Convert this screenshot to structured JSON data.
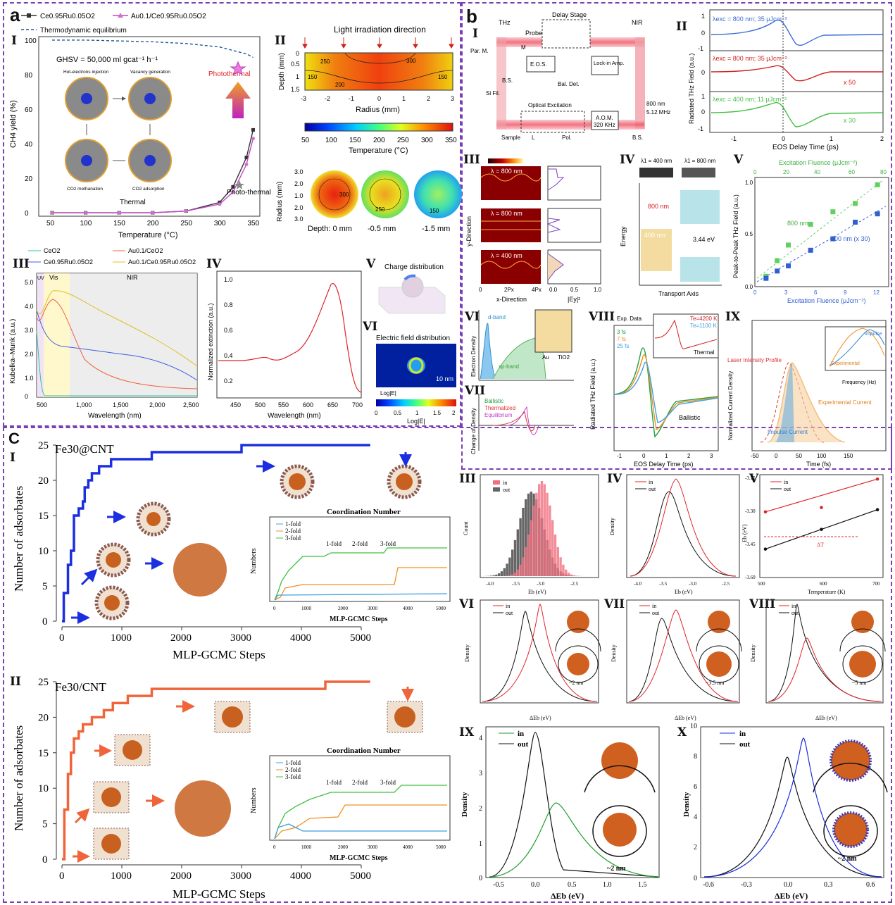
{
  "panels": {
    "a": "a",
    "b": "b",
    "c": "C"
  },
  "roman": {
    "I": "I",
    "II": "II",
    "III": "III",
    "IV": "IV",
    "V": "V",
    "VI": "VI",
    "VII": "VII",
    "VIII": "VIII",
    "IX": "IX",
    "X": "X"
  },
  "a1": {
    "legend": [
      "Ce0.95Ru0.05O2",
      "Au0.1/Ce0.95Ru0.05O2",
      "Thermodynamic equilibrium"
    ],
    "ghsv": "GHSV = 50,000 ml gcat⁻¹ h⁻¹",
    "ylabel": "CH4 yield (%)",
    "xlabel": "Temperature (°C)",
    "labels": [
      "Hot-electrons injection",
      "Vacancy generation",
      "CO2 methanation",
      "CO2 adsorption",
      "Thermal",
      "Photothermal",
      "Photo-thermal"
    ]
  },
  "a2": {
    "title": "Light irradiation direction",
    "ylabel": "Depth (mm)",
    "xlabel": "Radius (mm)",
    "cbar_label": "Temperature (°C)",
    "cbar_ticks": [
      "50",
      "100",
      "150",
      "200",
      "250",
      "300",
      "350"
    ],
    "depth_labels": [
      "Depth: 0 mm",
      "-0.5 mm",
      "-1.5 mm"
    ],
    "ylabel2": "Radius (mm)"
  },
  "a3": {
    "legend": [
      "CeO2",
      "Au0.1/CeO2",
      "Ce0.95Ru0.05O2",
      "Au0.1/Ce0.95Ru0.05O2"
    ],
    "regions": [
      "UV",
      "Vis",
      "NIR"
    ],
    "ylabel": "Kubelka–Munk (a.u.)",
    "xlabel": "Wavelength (nm)"
  },
  "a4": {
    "ylabel": "Normalized extinction (a.u.)",
    "xlabel": "Wavelength (nm)"
  },
  "a5": {
    "title": "Charge distribution"
  },
  "a6": {
    "title": "Electric field distribution",
    "scale": "10 nm",
    "cbar": "Log|E|",
    "ticks": [
      "0",
      "0.5",
      "1",
      "1.5",
      "2"
    ]
  },
  "b1": {
    "labels": [
      "THz",
      "Delay Stage",
      "NIR",
      "Probe",
      "M",
      "Par. M.",
      "B.S.",
      "E.O.S.",
      "Lock-in Amp.",
      "Bal. Det.",
      "Si Fil.",
      "Optical Excitation",
      "800 nm",
      "5.12 MHz",
      "A.O.M.",
      "320 KHz",
      "Sample",
      "L",
      "Pol.",
      "B.S."
    ]
  },
  "b2": {
    "ylabel": "Radiated THz Field (a.u.)",
    "xlabel": "EOS Delay Time (ps)",
    "traces": [
      "λexc = 800 nm; 35 μJcm⁻²",
      "λexc = 800 nm; 35 μJcm⁻²",
      "λexc = 400 nm; 11 μJcm⁻²"
    ],
    "mult": [
      "x 50",
      "x 30"
    ]
  },
  "b3": {
    "labels": [
      "λ = 800 nm",
      "λ = 800 nm",
      "λ = 400 nm"
    ],
    "ylabel": "y-Direction",
    "xlabel": "x-Direction",
    "xlabel2": "|Ey|²"
  },
  "b4": {
    "labels": [
      "λ1 = 400 nm",
      "λ1 = 800 nm",
      "800 nm",
      "400 nm",
      "3.44 eV",
      "Energy",
      "Transport Axis"
    ]
  },
  "b5": {
    "ylabel": "Peak-to-Peak THz Field (a.u.)",
    "xlabel": "Excitation Fluence (μJcm⁻²)",
    "series": [
      "800 nm",
      "400 nm (x 30)"
    ]
  },
  "b6": {
    "labels": [
      "d-band",
      "sp-band",
      "Electron Density",
      "Au",
      "TiO2"
    ]
  },
  "b7": {
    "legend": [
      "Ballistic",
      "Thermalized",
      "Equilibrium"
    ],
    "ylabel": "Change of Density"
  },
  "b8": {
    "legend": [
      "Exp. Data",
      "3 fs",
      "7 fs",
      "25 fs"
    ],
    "temps": [
      "Te=4200 K",
      "Te=1100 K"
    ],
    "labels": [
      "Ballistic",
      "Thermal"
    ],
    "ylabel": "Radiated THz Field (a.u.)",
    "xlabel": "EOS Delay Time (ps)"
  },
  "b9": {
    "labels": [
      "Laser Intensity Profile",
      "Experimental Current",
      "Impulse Current",
      "Impulse",
      "Experimental"
    ],
    "ylabel": "Normalized Current Density",
    "xlabel": "Time (fs)",
    "inset_x": "Frequency (Hz)",
    "inset_y": "Radiated THz Field"
  },
  "c1": {
    "title": "Fe30@CNT",
    "ylabel": "Number of adsorbates",
    "xlabel": "MLP-GCMC Steps",
    "inset_title": "Coordination Number",
    "inset_legend": [
      "1-fold",
      "2-fold",
      "3-fold"
    ],
    "inset_x": "MLP-GCMC Steps",
    "inset_y": "Numbers"
  },
  "c2": {
    "title": "Fe30/CNT",
    "ylabel": "Number of adsorbates",
    "xlabel": "MLP-GCMC Steps",
    "inset_title": "Coordination Number",
    "inset_legend": [
      "1-fold",
      "2-fold",
      "3-fold"
    ],
    "inset_x": "MLP-GCMC Steps",
    "inset_y": "Numbers"
  },
  "c3": {
    "legend": [
      "in",
      "out"
    ],
    "ylabel": "Count",
    "xlabel": "Eb (eV)"
  },
  "c4": {
    "legend": [
      "in",
      "out"
    ],
    "ylabel": "Density",
    "xlabel": "Eb (eV)"
  },
  "c5": {
    "legend": [
      "in",
      "out"
    ],
    "ylabel": "Eb (eV)",
    "xlabel": "Temperature (K)",
    "dt": "ΔT"
  },
  "c6": {
    "legend": [
      "in",
      "out"
    ],
    "ylabel": "Density",
    "xlabel": "ΔEb (eV)",
    "size": "~2 nm"
  },
  "c7": {
    "legend": [
      "in",
      "out"
    ],
    "ylabel": "Density",
    "xlabel": "ΔEb (eV)",
    "size": "~3.5 nm"
  },
  "c8": {
    "legend": [
      "in",
      "out"
    ],
    "ylabel": "Density",
    "xlabel": "ΔEb (eV)",
    "size": "~5 nm"
  },
  "c9": {
    "legend": [
      "in",
      "out"
    ],
    "ylabel": "Density",
    "xlabel": "ΔEb (eV)",
    "size": "~2 nm"
  },
  "c10": {
    "legend": [
      "in",
      "out"
    ],
    "ylabel": "Density",
    "xlabel": "ΔEb (eV)",
    "size": "~2 nm"
  },
  "colors": {
    "frame": "#7a3fb5",
    "blue": "#1b2ee0",
    "orange": "#f0643a",
    "red": "#e0242a",
    "green": "#2aa52a"
  },
  "chart_data": [
    {
      "type": "line",
      "id": "a1",
      "x": [
        50,
        100,
        150,
        200,
        250,
        300,
        320,
        340,
        350
      ],
      "series": [
        {
          "name": "Ce0.95Ru0.05O2",
          "values": [
            0,
            0,
            0,
            0,
            1,
            6,
            15,
            32,
            48
          ]
        },
        {
          "name": "Au0.1/Ce0.95Ru0.05O2",
          "values": [
            0,
            0,
            0,
            0,
            1,
            5,
            12,
            28,
            43
          ]
        },
        {
          "name": "Thermodynamic equilibrium",
          "values": [
            100,
            100,
            99.5,
            99,
            98,
            96,
            94,
            92,
            90
          ]
        }
      ],
      "xlim": [
        30,
        360
      ],
      "ylim": [
        -2,
        102
      ],
      "xticks": [
        50,
        100,
        150,
        200,
        250,
        300,
        350
      ],
      "yticks": [
        0,
        20,
        40,
        60,
        80,
        100
      ]
    },
    {
      "type": "line",
      "id": "c1",
      "x": [
        0,
        30,
        100,
        150,
        200,
        280,
        350,
        380,
        440,
        500,
        620,
        700,
        820,
        1500,
        2850,
        3000,
        4050,
        5000
      ],
      "values": [
        0,
        4,
        8,
        10,
        15,
        16,
        17,
        19,
        20,
        21,
        22,
        22,
        23,
        24,
        24,
        25,
        25,
        25
      ],
      "xlim": [
        0,
        5000
      ],
      "ylim": [
        0,
        25
      ],
      "xticks": [
        0,
        1000,
        2000,
        3000,
        4000,
        5000
      ],
      "yticks": [
        0,
        5,
        10,
        15,
        20,
        25
      ]
    },
    {
      "type": "line",
      "id": "c2",
      "x": [
        0,
        40,
        100,
        150,
        200,
        280,
        350,
        500,
        700,
        850,
        1100,
        1500,
        1700,
        4400,
        5000
      ],
      "values": [
        0,
        7,
        12,
        15,
        17,
        18,
        19,
        20,
        21,
        22,
        23,
        24,
        24,
        25,
        25
      ],
      "xlim": [
        0,
        5000
      ],
      "ylim": [
        0,
        25
      ],
      "xticks": [
        0,
        1000,
        2000,
        3000,
        4000,
        5000
      ],
      "yticks": [
        0,
        5,
        10,
        15,
        20,
        25
      ]
    },
    {
      "type": "scatter",
      "id": "c5",
      "x": [
        500,
        600,
        700
      ],
      "series": [
        {
          "name": "in",
          "values": [
            -3.3,
            -3.28,
            -3.15
          ]
        },
        {
          "name": "out",
          "values": [
            -3.47,
            -3.38,
            -3.29
          ]
        }
      ],
      "xlim": [
        490,
        710
      ],
      "ylim": [
        -3.6,
        -3.13
      ],
      "yticks": [
        -3.6,
        -3.45,
        -3.3,
        -3.15
      ],
      "xticks": [
        500,
        600,
        700
      ]
    },
    {
      "type": "scatter",
      "id": "b5",
      "x": [
        1,
        2,
        3,
        5,
        7,
        9,
        11
      ],
      "series": [
        {
          "name": "800 nm",
          "values": [
            0.1,
            0.25,
            0.4,
            0.6,
            0.72,
            0.8,
            0.98
          ]
        },
        {
          "name": "400 nm (x 30)",
          "values": [
            0.08,
            0.15,
            0.2,
            0.35,
            0.46,
            0.62,
            0.7
          ]
        }
      ],
      "xlim": [
        0,
        12
      ],
      "ylim": [
        0,
        1.05
      ]
    }
  ]
}
